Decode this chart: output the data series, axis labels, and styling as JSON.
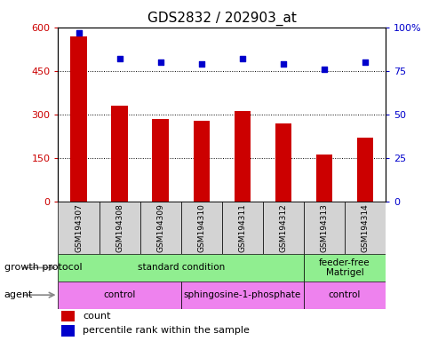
{
  "title": "GDS2832 / 202903_at",
  "samples": [
    "GSM194307",
    "GSM194308",
    "GSM194309",
    "GSM194310",
    "GSM194311",
    "GSM194312",
    "GSM194313",
    "GSM194314"
  ],
  "counts": [
    570,
    330,
    285,
    278,
    310,
    268,
    162,
    220
  ],
  "percentiles": [
    97,
    82,
    80,
    79,
    82,
    79,
    76,
    80
  ],
  "ylim_left": [
    0,
    600
  ],
  "ylim_right": [
    0,
    100
  ],
  "yticks_left": [
    0,
    150,
    300,
    450,
    600
  ],
  "yticks_right": [
    0,
    25,
    50,
    75,
    100
  ],
  "bar_color": "#cc0000",
  "dot_color": "#0000cc",
  "background_color": "#ffffff",
  "growth_protocol_color": "#90ee90",
  "agent_color": "#ee82ee",
  "sample_bg_color": "#d3d3d3",
  "growth_protocol_groups": [
    {
      "label": "standard condition",
      "start": 0,
      "end": 6
    },
    {
      "label": "feeder-free\nMatrigel",
      "start": 6,
      "end": 8
    }
  ],
  "agent_groups": [
    {
      "label": "control",
      "start": 0,
      "end": 3
    },
    {
      "label": "sphingosine-1-phosphate",
      "start": 3,
      "end": 6
    },
    {
      "label": "control",
      "start": 6,
      "end": 8
    }
  ],
  "legend_count_label": "count",
  "legend_percentile_label": "percentile rank within the sample",
  "title_fontsize": 11,
  "tick_fontsize": 8,
  "label_fontsize": 8,
  "sample_fontsize": 6.5,
  "annotation_fontsize": 7.5,
  "legend_fontsize": 8
}
